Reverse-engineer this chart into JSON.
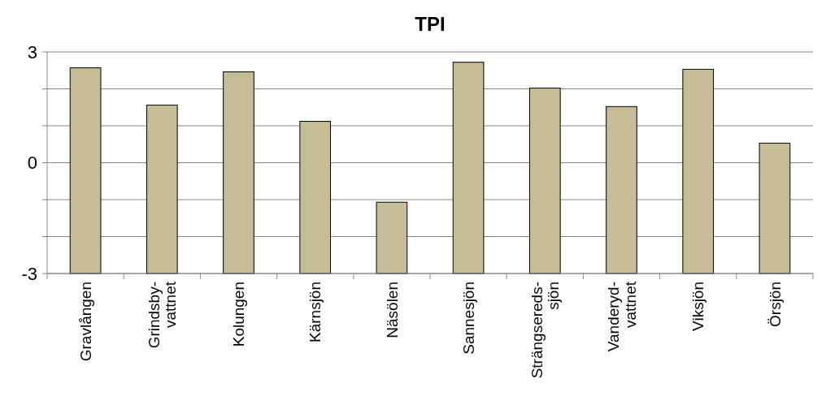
{
  "chart_data": {
    "type": "bar",
    "title": "TPI",
    "categories": [
      "Gravlången",
      "Grindsby-\nvattnet",
      "Kolungen",
      "Kärnsjön",
      "Näsölen",
      "Sannesjön",
      "Strängsereds-\nsjön",
      "Vanderyd-\nvattnet",
      "Viksjön",
      "Örsjön"
    ],
    "values": [
      5.57,
      4.56,
      5.46,
      4.12,
      1.93,
      5.72,
      5.02,
      4.52,
      5.53,
      3.53
    ],
    "base": [
      -3,
      -3,
      -3,
      -3,
      -3,
      -3,
      -3,
      -3,
      -3,
      -3
    ],
    "color": "#c4bd97",
    "ylim": [
      -3,
      3
    ],
    "yticks": [
      -3,
      {
        "value": -2,
        "label": null
      },
      {
        "value": -1,
        "label": null
      },
      0,
      {
        "value": 1,
        "label": null
      },
      {
        "value": 2,
        "label": null
      },
      3
    ],
    "grid": "y"
  }
}
